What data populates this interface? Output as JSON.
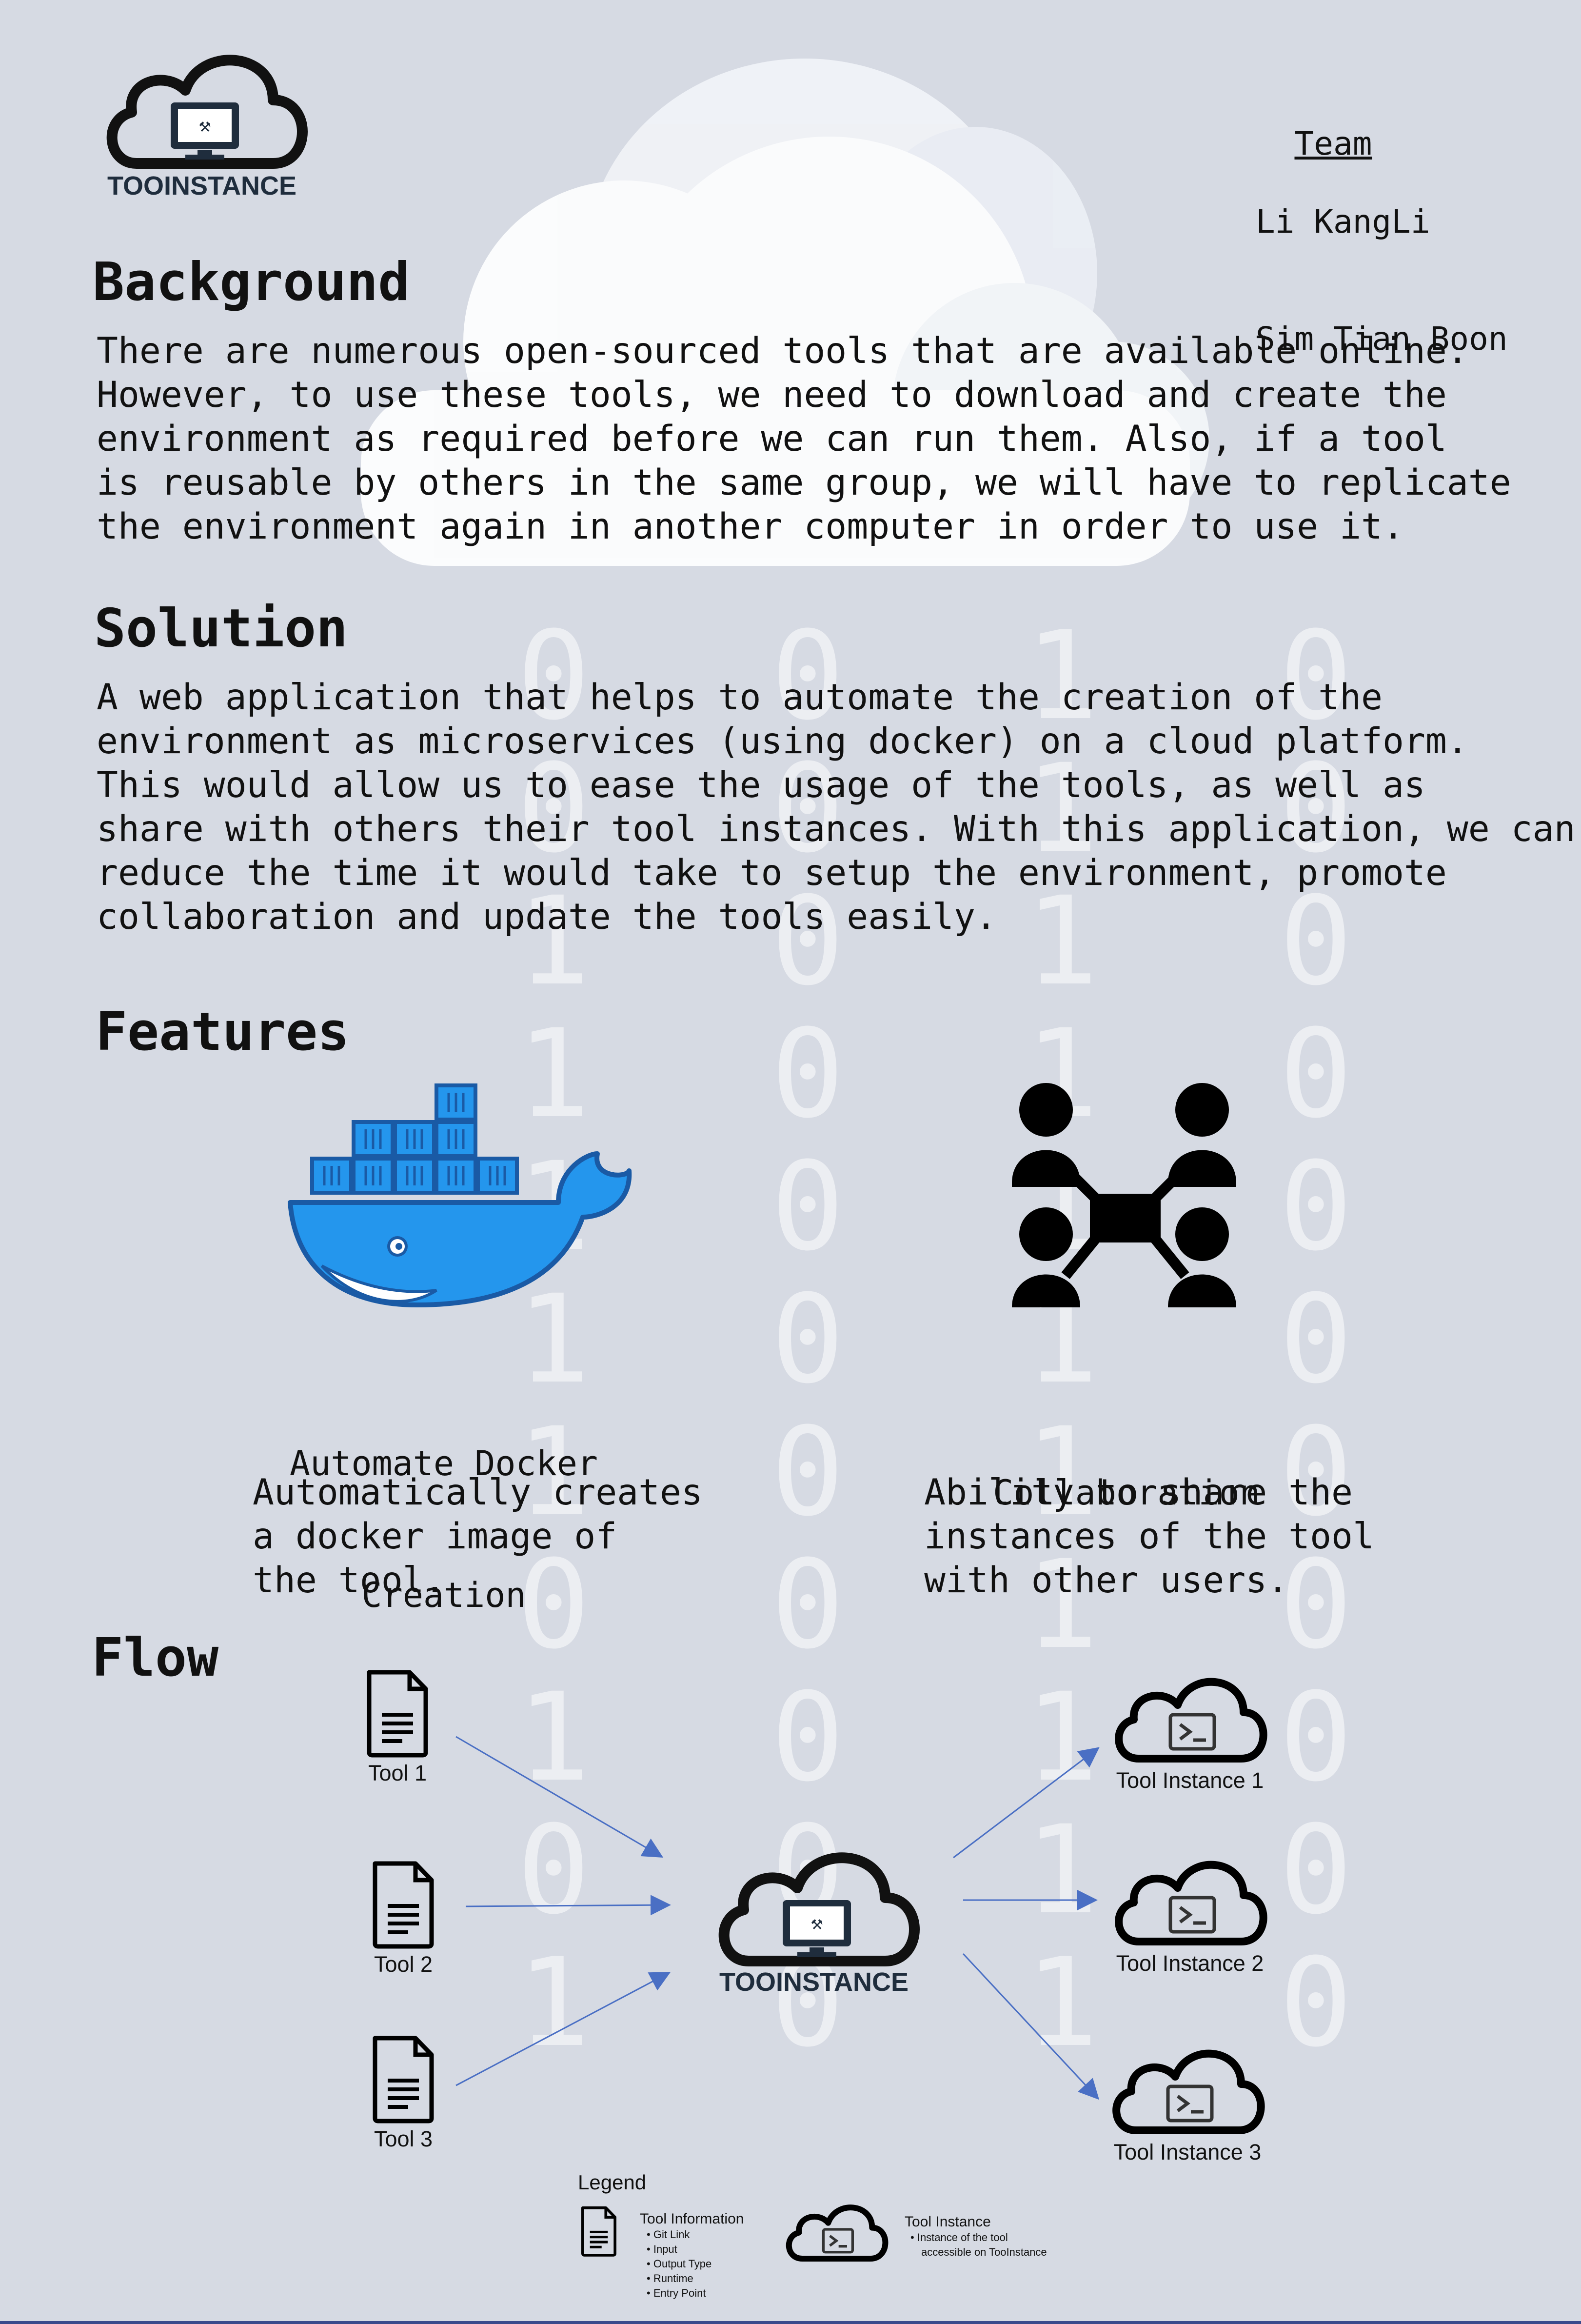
{
  "logo": {
    "text": "TOOINSTANCE"
  },
  "team": {
    "heading": "Team",
    "members": [
      "Li KangLi",
      "Sim Tian Boon"
    ]
  },
  "background": {
    "heading": "Background",
    "lines": [
      "There are numerous open-sourced tools that are available online.",
      "However, to use these tools, we need to download and create the",
      "environment as required before we can run them. Also, if a tool",
      "is reusable by others in the same group, we will have to replicate",
      "the environment again in another computer in order to use it."
    ]
  },
  "solution": {
    "heading": "Solution",
    "lines": [
      "A web application that helps to automate the creation of the",
      "environment as microservices (using docker) on a cloud platform.",
      "This would allow us to ease the usage of the tools, as well as",
      "share with others their tool instances. With this application, we can",
      "reduce the time it would take to setup the environment, promote",
      "collaboration and update the tools easily."
    ]
  },
  "features": {
    "heading": "Features",
    "items": [
      {
        "title_lines": [
          "Automate Docker",
          "Creation"
        ],
        "desc_lines": [
          "Automatically creates",
          "a docker image of",
          "the tool."
        ],
        "icon": "docker-whale-icon"
      },
      {
        "title_lines": [
          "Collaboration"
        ],
        "desc_lines": [
          "Ability to share the",
          "instances of the tool",
          "with other users."
        ],
        "icon": "collaboration-network-icon"
      }
    ]
  },
  "flow": {
    "heading": "Flow",
    "tools": [
      "Tool 1",
      "Tool 2",
      "Tool 3"
    ],
    "center_label": "TOOINSTANCE",
    "instances": [
      "Tool Instance 1",
      "Tool Instance 2",
      "Tool Instance 3"
    ]
  },
  "legend": {
    "title": "Legend",
    "tool_info": {
      "title": "Tool Information",
      "items": [
        "Git Link",
        "Input",
        "Output Type",
        "Runtime",
        "Entry Point"
      ]
    },
    "tool_instance": {
      "title": "Tool Instance",
      "desc": [
        "Instance of the tool",
        "accessible on TooInstance"
      ]
    }
  },
  "colors": {
    "background": "#d6dae3",
    "docker_blue": "#2496ed",
    "docker_dark": "#1a5aa5",
    "arrow": "#4a6fc4"
  }
}
